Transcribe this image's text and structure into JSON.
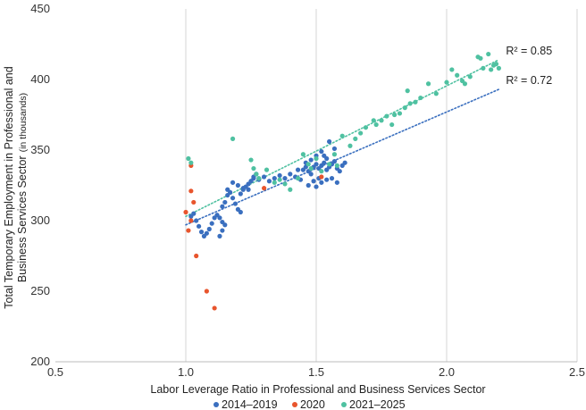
{
  "chart_data": {
    "type": "scatter",
    "xlabel": "Labor Leverage Ratio in Professional and Business Services Sector",
    "ylabel_line1": "Total Temporary Employment in Professional and",
    "ylabel_line2": "Business Services Sector",
    "ylabel_unit": "(in thousands)",
    "xlim": [
      0.5,
      2.5
    ],
    "ylim": [
      200,
      450
    ],
    "x_ticks": [
      "0.5",
      "1.0",
      "1.5",
      "2.0",
      "2.5"
    ],
    "y_ticks": [
      "200",
      "250",
      "300",
      "350",
      "400",
      "450"
    ],
    "grid_x": true,
    "grid_y": false,
    "legend_position": "bottom-center",
    "series": [
      {
        "name": "2014–2019",
        "color": "#3a6fbf",
        "points": [
          [
            1.02,
            303
          ],
          [
            1.03,
            305
          ],
          [
            1.04,
            300
          ],
          [
            1.05,
            296
          ],
          [
            1.06,
            292
          ],
          [
            1.07,
            289
          ],
          [
            1.08,
            291
          ],
          [
            1.09,
            294
          ],
          [
            1.1,
            298
          ],
          [
            1.11,
            302
          ],
          [
            1.12,
            304
          ],
          [
            1.13,
            302
          ],
          [
            1.14,
            299
          ],
          [
            1.13,
            289
          ],
          [
            1.14,
            293
          ],
          [
            1.15,
            297
          ],
          [
            1.14,
            310
          ],
          [
            1.15,
            313
          ],
          [
            1.16,
            318
          ],
          [
            1.17,
            320
          ],
          [
            1.18,
            316
          ],
          [
            1.19,
            312
          ],
          [
            1.2,
            308
          ],
          [
            1.21,
            306
          ],
          [
            1.21,
            319
          ],
          [
            1.22,
            322
          ],
          [
            1.23,
            324
          ],
          [
            1.24,
            326
          ],
          [
            1.25,
            328
          ],
          [
            1.26,
            330
          ],
          [
            1.27,
            333
          ],
          [
            1.28,
            329
          ],
          [
            1.3,
            331
          ],
          [
            1.32,
            328
          ],
          [
            1.34,
            330
          ],
          [
            1.36,
            332
          ],
          [
            1.38,
            330
          ],
          [
            1.4,
            333
          ],
          [
            1.42,
            331
          ],
          [
            1.44,
            329
          ],
          [
            1.45,
            336
          ],
          [
            1.46,
            338
          ],
          [
            1.47,
            335
          ],
          [
            1.48,
            333
          ],
          [
            1.49,
            338
          ],
          [
            1.5,
            340
          ],
          [
            1.51,
            337
          ],
          [
            1.52,
            339
          ],
          [
            1.53,
            341
          ],
          [
            1.54,
            336
          ],
          [
            1.55,
            338
          ],
          [
            1.56,
            340
          ],
          [
            1.57,
            342
          ],
          [
            1.58,
            337
          ],
          [
            1.59,
            335
          ],
          [
            1.6,
            339
          ],
          [
            1.61,
            341
          ],
          [
            1.5,
            324
          ],
          [
            1.52,
            327
          ],
          [
            1.54,
            329
          ],
          [
            1.47,
            325
          ],
          [
            1.49,
            328
          ],
          [
            1.51,
            330
          ],
          [
            1.53,
            346
          ],
          [
            1.55,
            356
          ],
          [
            1.57,
            351
          ],
          [
            1.48,
            343
          ],
          [
            1.5,
            346
          ],
          [
            1.52,
            349
          ],
          [
            1.54,
            344
          ],
          [
            1.56,
            330
          ],
          [
            1.58,
            327
          ],
          [
            1.18,
            327
          ],
          [
            1.2,
            325
          ],
          [
            1.22,
            323
          ],
          [
            1.16,
            322
          ],
          [
            1.24,
            322
          ],
          [
            1.26,
            331
          ],
          [
            1.43,
            336
          ],
          [
            1.46,
            341
          ]
        ]
      },
      {
        "name": "2020",
        "color": "#e8552d",
        "points": [
          [
            1.0,
            306
          ],
          [
            1.01,
            293
          ],
          [
            1.02,
            300
          ],
          [
            1.02,
            321
          ],
          [
            1.03,
            313
          ],
          [
            1.04,
            275
          ],
          [
            1.08,
            250
          ],
          [
            1.11,
            238
          ],
          [
            1.02,
            339
          ],
          [
            1.3,
            323
          ],
          [
            1.52,
            331
          ]
        ]
      },
      {
        "name": "2021–2025",
        "color": "#4fc1a1",
        "points": [
          [
            1.01,
            344
          ],
          [
            1.02,
            341
          ],
          [
            1.18,
            358
          ],
          [
            1.25,
            343
          ],
          [
            1.26,
            337
          ],
          [
            1.27,
            333
          ],
          [
            1.28,
            330
          ],
          [
            1.31,
            336
          ],
          [
            1.34,
            327
          ],
          [
            1.36,
            329
          ],
          [
            1.38,
            326
          ],
          [
            1.4,
            322
          ],
          [
            1.43,
            330
          ],
          [
            1.45,
            347
          ],
          [
            1.47,
            340
          ],
          [
            1.48,
            337
          ],
          [
            1.5,
            344
          ],
          [
            1.52,
            335
          ],
          [
            1.55,
            340
          ],
          [
            1.57,
            347
          ],
          [
            1.58,
            339
          ],
          [
            1.6,
            360
          ],
          [
            1.63,
            353
          ],
          [
            1.65,
            358
          ],
          [
            1.67,
            362
          ],
          [
            1.69,
            366
          ],
          [
            1.72,
            371
          ],
          [
            1.73,
            368
          ],
          [
            1.75,
            371
          ],
          [
            1.77,
            374
          ],
          [
            1.79,
            368
          ],
          [
            1.8,
            375
          ],
          [
            1.82,
            376
          ],
          [
            1.84,
            380
          ],
          [
            1.85,
            392
          ],
          [
            1.86,
            383
          ],
          [
            1.88,
            384
          ],
          [
            1.9,
            387
          ],
          [
            1.93,
            397
          ],
          [
            1.96,
            390
          ],
          [
            2.0,
            398
          ],
          [
            2.02,
            407
          ],
          [
            2.04,
            403
          ],
          [
            2.06,
            399
          ],
          [
            2.07,
            397
          ],
          [
            2.09,
            402
          ],
          [
            2.12,
            416
          ],
          [
            2.13,
            415
          ],
          [
            2.14,
            408
          ],
          [
            2.16,
            418
          ],
          [
            2.17,
            407
          ],
          [
            2.18,
            410
          ],
          [
            2.19,
            411
          ],
          [
            2.2,
            408
          ]
        ]
      }
    ],
    "trendlines": [
      {
        "color": "#4fc1a1",
        "x": [
          1.0,
          2.2
        ],
        "y": [
          303,
          414
        ],
        "label": "R² = 0.85"
      },
      {
        "color": "#3a6fbf",
        "x": [
          1.0,
          2.2
        ],
        "y": [
          297,
          393
        ],
        "label": "R² = 0.72"
      }
    ]
  }
}
